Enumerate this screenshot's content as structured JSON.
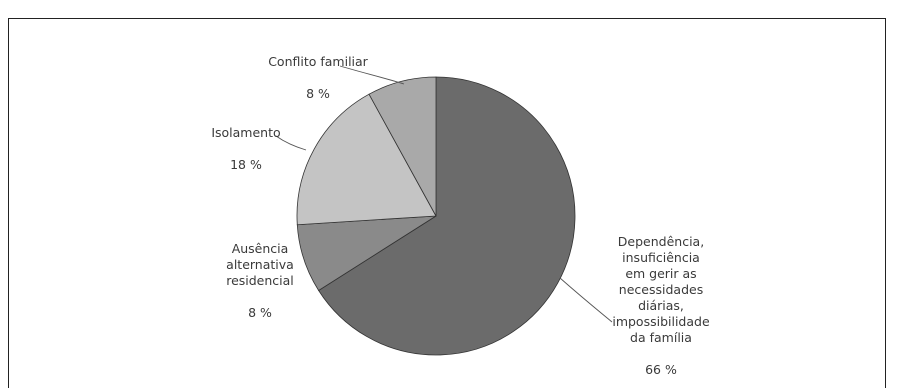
{
  "chart_data": {
    "type": "pie",
    "slices": [
      {
        "label": "Dependência,\ninsuficiência\nem gerir as\nnecessidades\ndiárias,\nimpossibilidade\nda família",
        "percent_text": "66 %",
        "value": 66,
        "color": "#6b6b6b"
      },
      {
        "label": "Ausência\nalternativa\nresidencial",
        "percent_text": "8 %",
        "value": 8,
        "color": "#8a8a8a"
      },
      {
        "label": "Isolamento",
        "percent_text": "18 %",
        "value": 18,
        "color": "#c4c4c4"
      },
      {
        "label": "Conflito familiar",
        "percent_text": "8 %",
        "value": 8,
        "color": "#a9a9a9"
      }
    ],
    "start": "12 o'clock",
    "direction": "clockwise"
  }
}
